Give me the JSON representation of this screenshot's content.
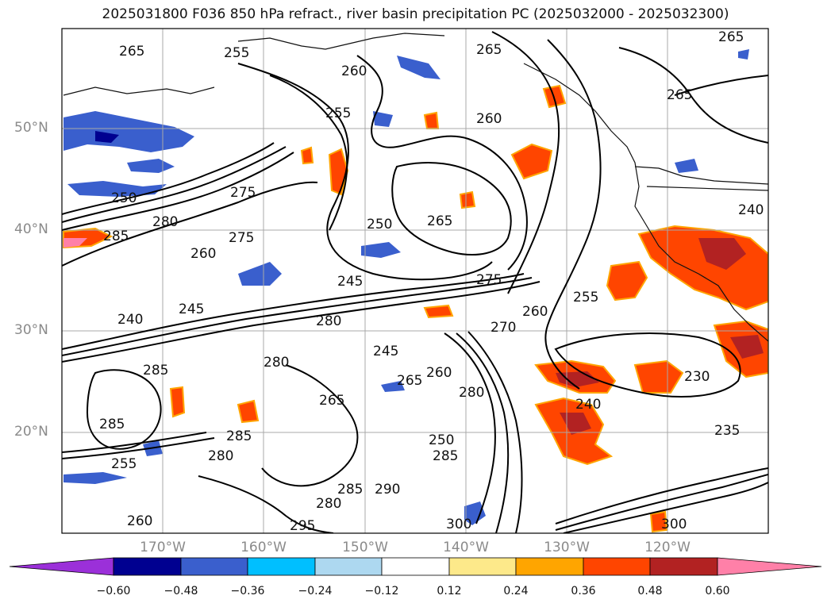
{
  "title": "2025031800 F036 850 hPa refract., river basin precipitation PC (2025032000 - 2025032300)",
  "map": {
    "lat_labels": [
      "50°N",
      "40°N",
      "30°N",
      "20°N"
    ],
    "lon_labels": [
      "170°W",
      "160°W",
      "150°W",
      "140°W",
      "130°W",
      "120°W"
    ],
    "contour_labels": [
      "265",
      "255",
      "260",
      "265",
      "265",
      "255",
      "265",
      "250",
      "260",
      "285",
      "280",
      "275",
      "250",
      "265",
      "260",
      "245",
      "240",
      "245",
      "280",
      "275",
      "270",
      "260",
      "255",
      "245",
      "280",
      "265",
      "260",
      "285",
      "285",
      "280",
      "240",
      "230",
      "285",
      "255",
      "280",
      "265",
      "285",
      "290",
      "235",
      "295",
      "300",
      "285",
      "300",
      "280",
      "240",
      "260",
      "250",
      "275"
    ]
  },
  "colorbar": {
    "ticks": [
      "−0.60",
      "−0.48",
      "−0.36",
      "−0.24",
      "−0.12",
      "0.12",
      "0.24",
      "0.36",
      "0.48",
      "0.60"
    ],
    "colors": [
      "#9b30d9",
      "#000090",
      "#3a5fcd",
      "#00bfff",
      "#add8f0",
      "#ffffff",
      "#fde98a",
      "#ffa500",
      "#ff4500",
      "#b22222",
      "#ff80a8",
      "#ff80a8"
    ]
  }
}
